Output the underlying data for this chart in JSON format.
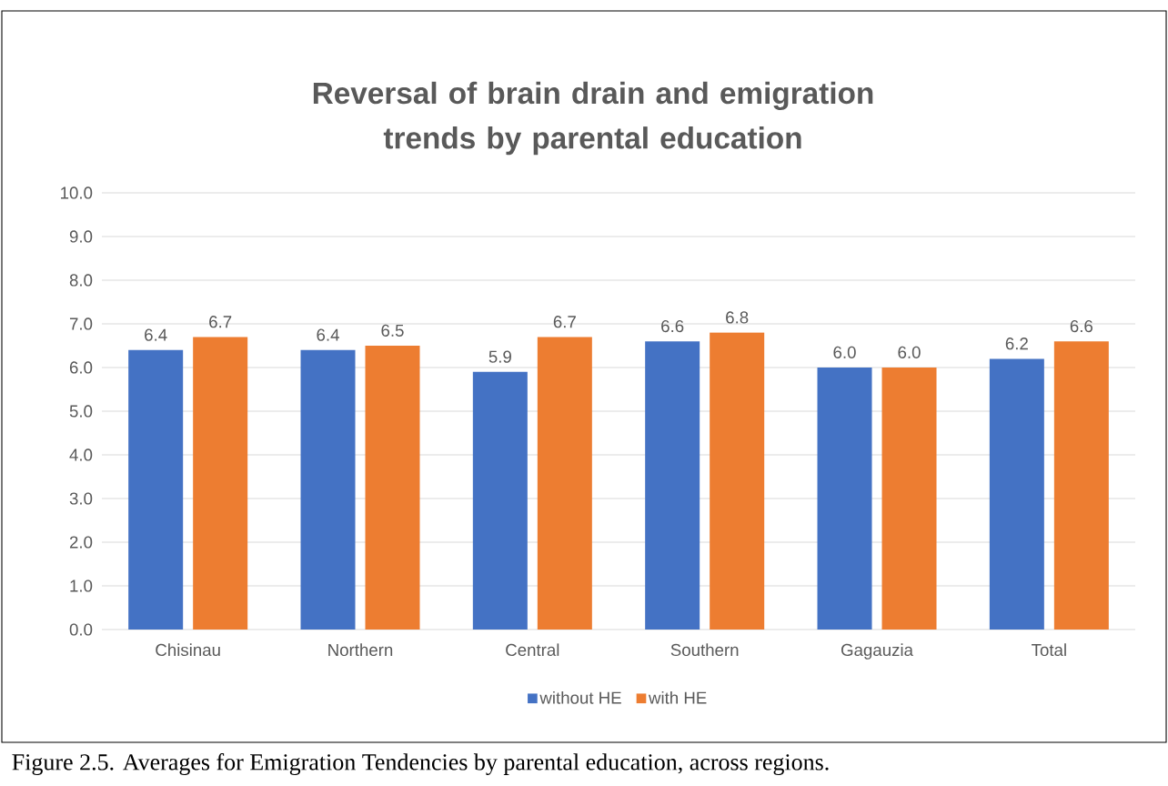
{
  "chart_data": {
    "type": "bar",
    "title": "Reversal of brain drain and emigration trends by parental education",
    "categories": [
      "Chisinau",
      "Northern",
      "Central",
      "Southern",
      "Gagauzia",
      "Total"
    ],
    "series": [
      {
        "name": "without HE",
        "color": "#4472c4",
        "values": [
          6.4,
          6.4,
          5.9,
          6.6,
          6.0,
          6.2
        ],
        "value_labels": [
          "6.4",
          "6.4",
          "5.9",
          "6.6",
          "6.0",
          "6.2"
        ]
      },
      {
        "name": "with HE",
        "color": "#ed7d31",
        "values": [
          6.7,
          6.5,
          6.7,
          6.8,
          6.0,
          6.6
        ],
        "value_labels": [
          "6.7",
          "6.5",
          "6.7",
          "6.8",
          "6.0",
          "6.6"
        ]
      }
    ],
    "ylim": [
      0,
      10
    ],
    "yticks": [
      {
        "value": 0,
        "label": "0.0"
      },
      {
        "value": 1,
        "label": "1.0"
      },
      {
        "value": 2,
        "label": "2.0"
      },
      {
        "value": 3,
        "label": "3.0"
      },
      {
        "value": 4,
        "label": "4.0"
      },
      {
        "value": 5,
        "label": "5.0"
      },
      {
        "value": 6,
        "label": "6.0"
      },
      {
        "value": 7,
        "label": "7.0"
      },
      {
        "value": 8,
        "label": "8.0"
      },
      {
        "value": 9,
        "label": "9.0"
      },
      {
        "value": 10,
        "label": "10.0"
      }
    ],
    "grid": "y",
    "legend": "bottom",
    "annotations": [
      "Figure 2.5. Averages for Emigration Tendencies by parental education, across regions."
    ]
  }
}
